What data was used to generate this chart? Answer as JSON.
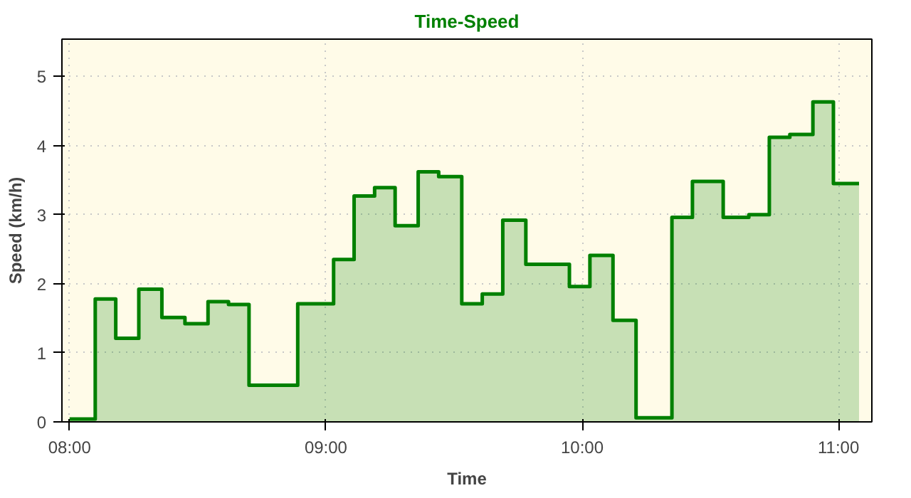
{
  "chart_data": {
    "type": "area",
    "title": "Time-Speed",
    "xlabel": "Time",
    "ylabel": "Speed (km/h)",
    "x": [
      8.0,
      8.1,
      8.1,
      8.18,
      8.18,
      8.27,
      8.27,
      8.36,
      8.36,
      8.45,
      8.45,
      8.54,
      8.54,
      8.62,
      8.62,
      8.7,
      8.7,
      8.89,
      8.89,
      9.03,
      9.03,
      9.11,
      9.11,
      9.19,
      9.19,
      9.27,
      9.27,
      9.36,
      9.36,
      9.44,
      9.44,
      9.53,
      9.53,
      9.61,
      9.61,
      9.69,
      9.69,
      9.78,
      9.78,
      9.95,
      9.95,
      10.03,
      10.03,
      10.12,
      10.12,
      10.21,
      10.21,
      10.35,
      10.35,
      10.43,
      10.43,
      10.55,
      10.55,
      10.65,
      10.65,
      10.73,
      10.73,
      10.81,
      10.81,
      10.9,
      10.9,
      10.98,
      10.98,
      11.08
    ],
    "series": [
      {
        "color": "#008000",
        "values": [
          0.04,
          0.04,
          1.78,
          1.78,
          1.21,
          1.21,
          1.92,
          1.92,
          1.51,
          1.51,
          1.42,
          1.42,
          1.74,
          1.74,
          1.7,
          1.7,
          0.53,
          0.53,
          1.71,
          1.71,
          2.35,
          2.35,
          3.27,
          3.27,
          3.39,
          3.39,
          2.84,
          2.84,
          3.62,
          3.62,
          3.55,
          3.55,
          1.71,
          1.71,
          1.85,
          1.85,
          2.92,
          2.92,
          2.28,
          2.28,
          1.96,
          1.96,
          2.41,
          2.41,
          1.47,
          1.47,
          0.06,
          0.06,
          2.96,
          2.96,
          3.48,
          3.48,
          2.96,
          2.96,
          3.0,
          3.0,
          4.12,
          4.12,
          4.16,
          4.16,
          4.63,
          4.63,
          3.45,
          3.45
        ]
      }
    ],
    "xlim": [
      7.97,
      11.13
    ],
    "ylim": [
      0,
      5.54
    ],
    "xticks": [
      {
        "value": 8,
        "label": "08:00"
      },
      {
        "value": 9,
        "label": "09:00"
      },
      {
        "value": 10,
        "label": "10:00"
      },
      {
        "value": 11,
        "label": "11:00"
      }
    ],
    "yticks": [
      0,
      1,
      2,
      3,
      4,
      5
    ],
    "grid": true
  }
}
